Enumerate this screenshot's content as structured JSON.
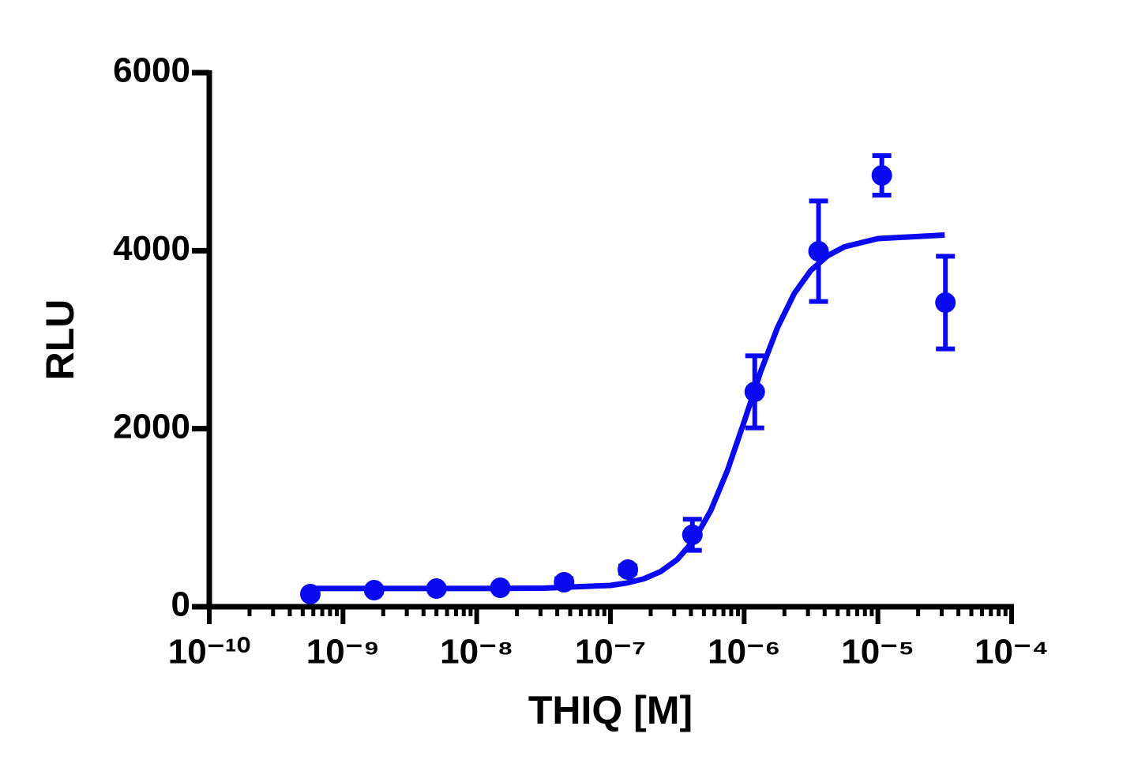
{
  "chart_data": {
    "type": "scatter",
    "x_label": "THIQ [M]",
    "y_label": "RLU",
    "log_x": true,
    "minor_ticks": true,
    "color": "#0a0af0",
    "x": [
      5.7e-10,
      1.71e-09,
      5e-09,
      1.5e-08,
      4.5e-08,
      1.35e-07,
      4.1e-07,
      1.2e-06,
      3.6e-06,
      1.07e-05,
      3.2e-05
    ],
    "values": [
      142,
      186,
      204,
      213,
      275,
      417,
      808,
      2414,
      3994,
      4846,
      3417
    ],
    "errors": [
      20,
      20,
      20,
      20,
      40,
      40,
      175,
      405,
      565,
      222,
      520
    ],
    "fit": {
      "x": [
        5.75e-10,
        1e-08,
        3.16e-08,
        1e-07,
        1.33e-07,
        1.78e-07,
        2.37e-07,
        3.16e-07,
        4.22e-07,
        5.62e-07,
        7.5e-07,
        1e-06,
        1.33e-06,
        1.78e-06,
        2.37e-06,
        3.16e-06,
        4.22e-06,
        5.62e-06,
        1e-05,
        3.16e-05
      ],
      "values": [
        205,
        205,
        209,
        240,
        267,
        314,
        395,
        530,
        749,
        1079,
        1532,
        2078,
        2642,
        3139,
        3519,
        3780,
        3944,
        4044,
        4136,
        4176
      ]
    },
    "xlim": [
      1e-10,
      0.0001
    ],
    "xticks": [
      {
        "value": 1e-10,
        "label": "10⁻¹⁰"
      },
      {
        "value": 1e-09,
        "label": "10⁻⁹"
      },
      {
        "value": 1e-08,
        "label": "10⁻⁸"
      },
      {
        "value": 1e-07,
        "label": "10⁻⁷"
      },
      {
        "value": 1e-06,
        "label": "10⁻⁶"
      },
      {
        "value": 1e-05,
        "label": "10⁻⁵"
      },
      {
        "value": 0.0001,
        "label": "10⁻⁴"
      }
    ],
    "ylim": [
      0,
      6000
    ],
    "yticks": [
      0,
      2000,
      4000,
      6000
    ]
  }
}
